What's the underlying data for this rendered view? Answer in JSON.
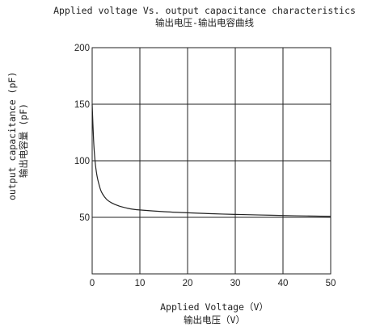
{
  "chart_data": {
    "type": "line",
    "title": "Applied voltage Vs. output capacitance characteristics",
    "subtitle": "输出电压-输出电容曲线",
    "xlabel": "Applied Voltage（V）",
    "xlabel_cn": "输出电压（V）",
    "ylabel": "output capacitance (pF)",
    "ylabel_cn": "输出电容量 (pF)",
    "xlim": [
      0,
      50
    ],
    "ylim": [
      0,
      200
    ],
    "xticks": [
      0,
      10,
      20,
      30,
      40,
      50
    ],
    "yticks": [
      50,
      100,
      150,
      200
    ],
    "grid": true,
    "series": [
      {
        "color": "#222222",
        "x": [
          0,
          0.3,
          0.6,
          1,
          1.5,
          2,
          3,
          4,
          5,
          6,
          8,
          10,
          15,
          20,
          25,
          30,
          35,
          40,
          45,
          50
        ],
        "y": [
          150,
          118,
          100,
          87,
          78,
          72,
          66,
          63,
          61,
          59.5,
          57.5,
          56.5,
          55,
          54,
          53.2,
          52.6,
          52.1,
          51.6,
          51.2,
          50.8
        ]
      }
    ]
  }
}
